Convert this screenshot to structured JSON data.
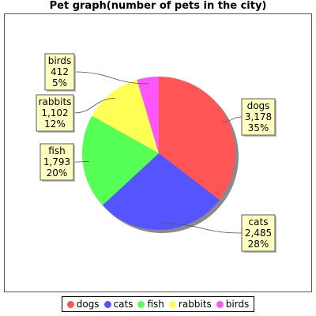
{
  "chart_data": {
    "type": "pie",
    "title": "Pet graph(number of pets in the city)",
    "categories": [
      "dogs",
      "cats",
      "fish",
      "rabbits",
      "birds"
    ],
    "values": [
      3178,
      2485,
      1793,
      1102,
      412
    ],
    "value_labels": [
      "3,178",
      "2,485",
      "1,793",
      "1,102",
      "412"
    ],
    "percent_labels": [
      "35%",
      "28%",
      "20%",
      "12%",
      "5%"
    ],
    "colors": [
      "#ff5555",
      "#5555ff",
      "#55ff55",
      "#ffff55",
      "#ff55ff"
    ],
    "legend_position": "bottom",
    "start": "top, clockwise"
  }
}
